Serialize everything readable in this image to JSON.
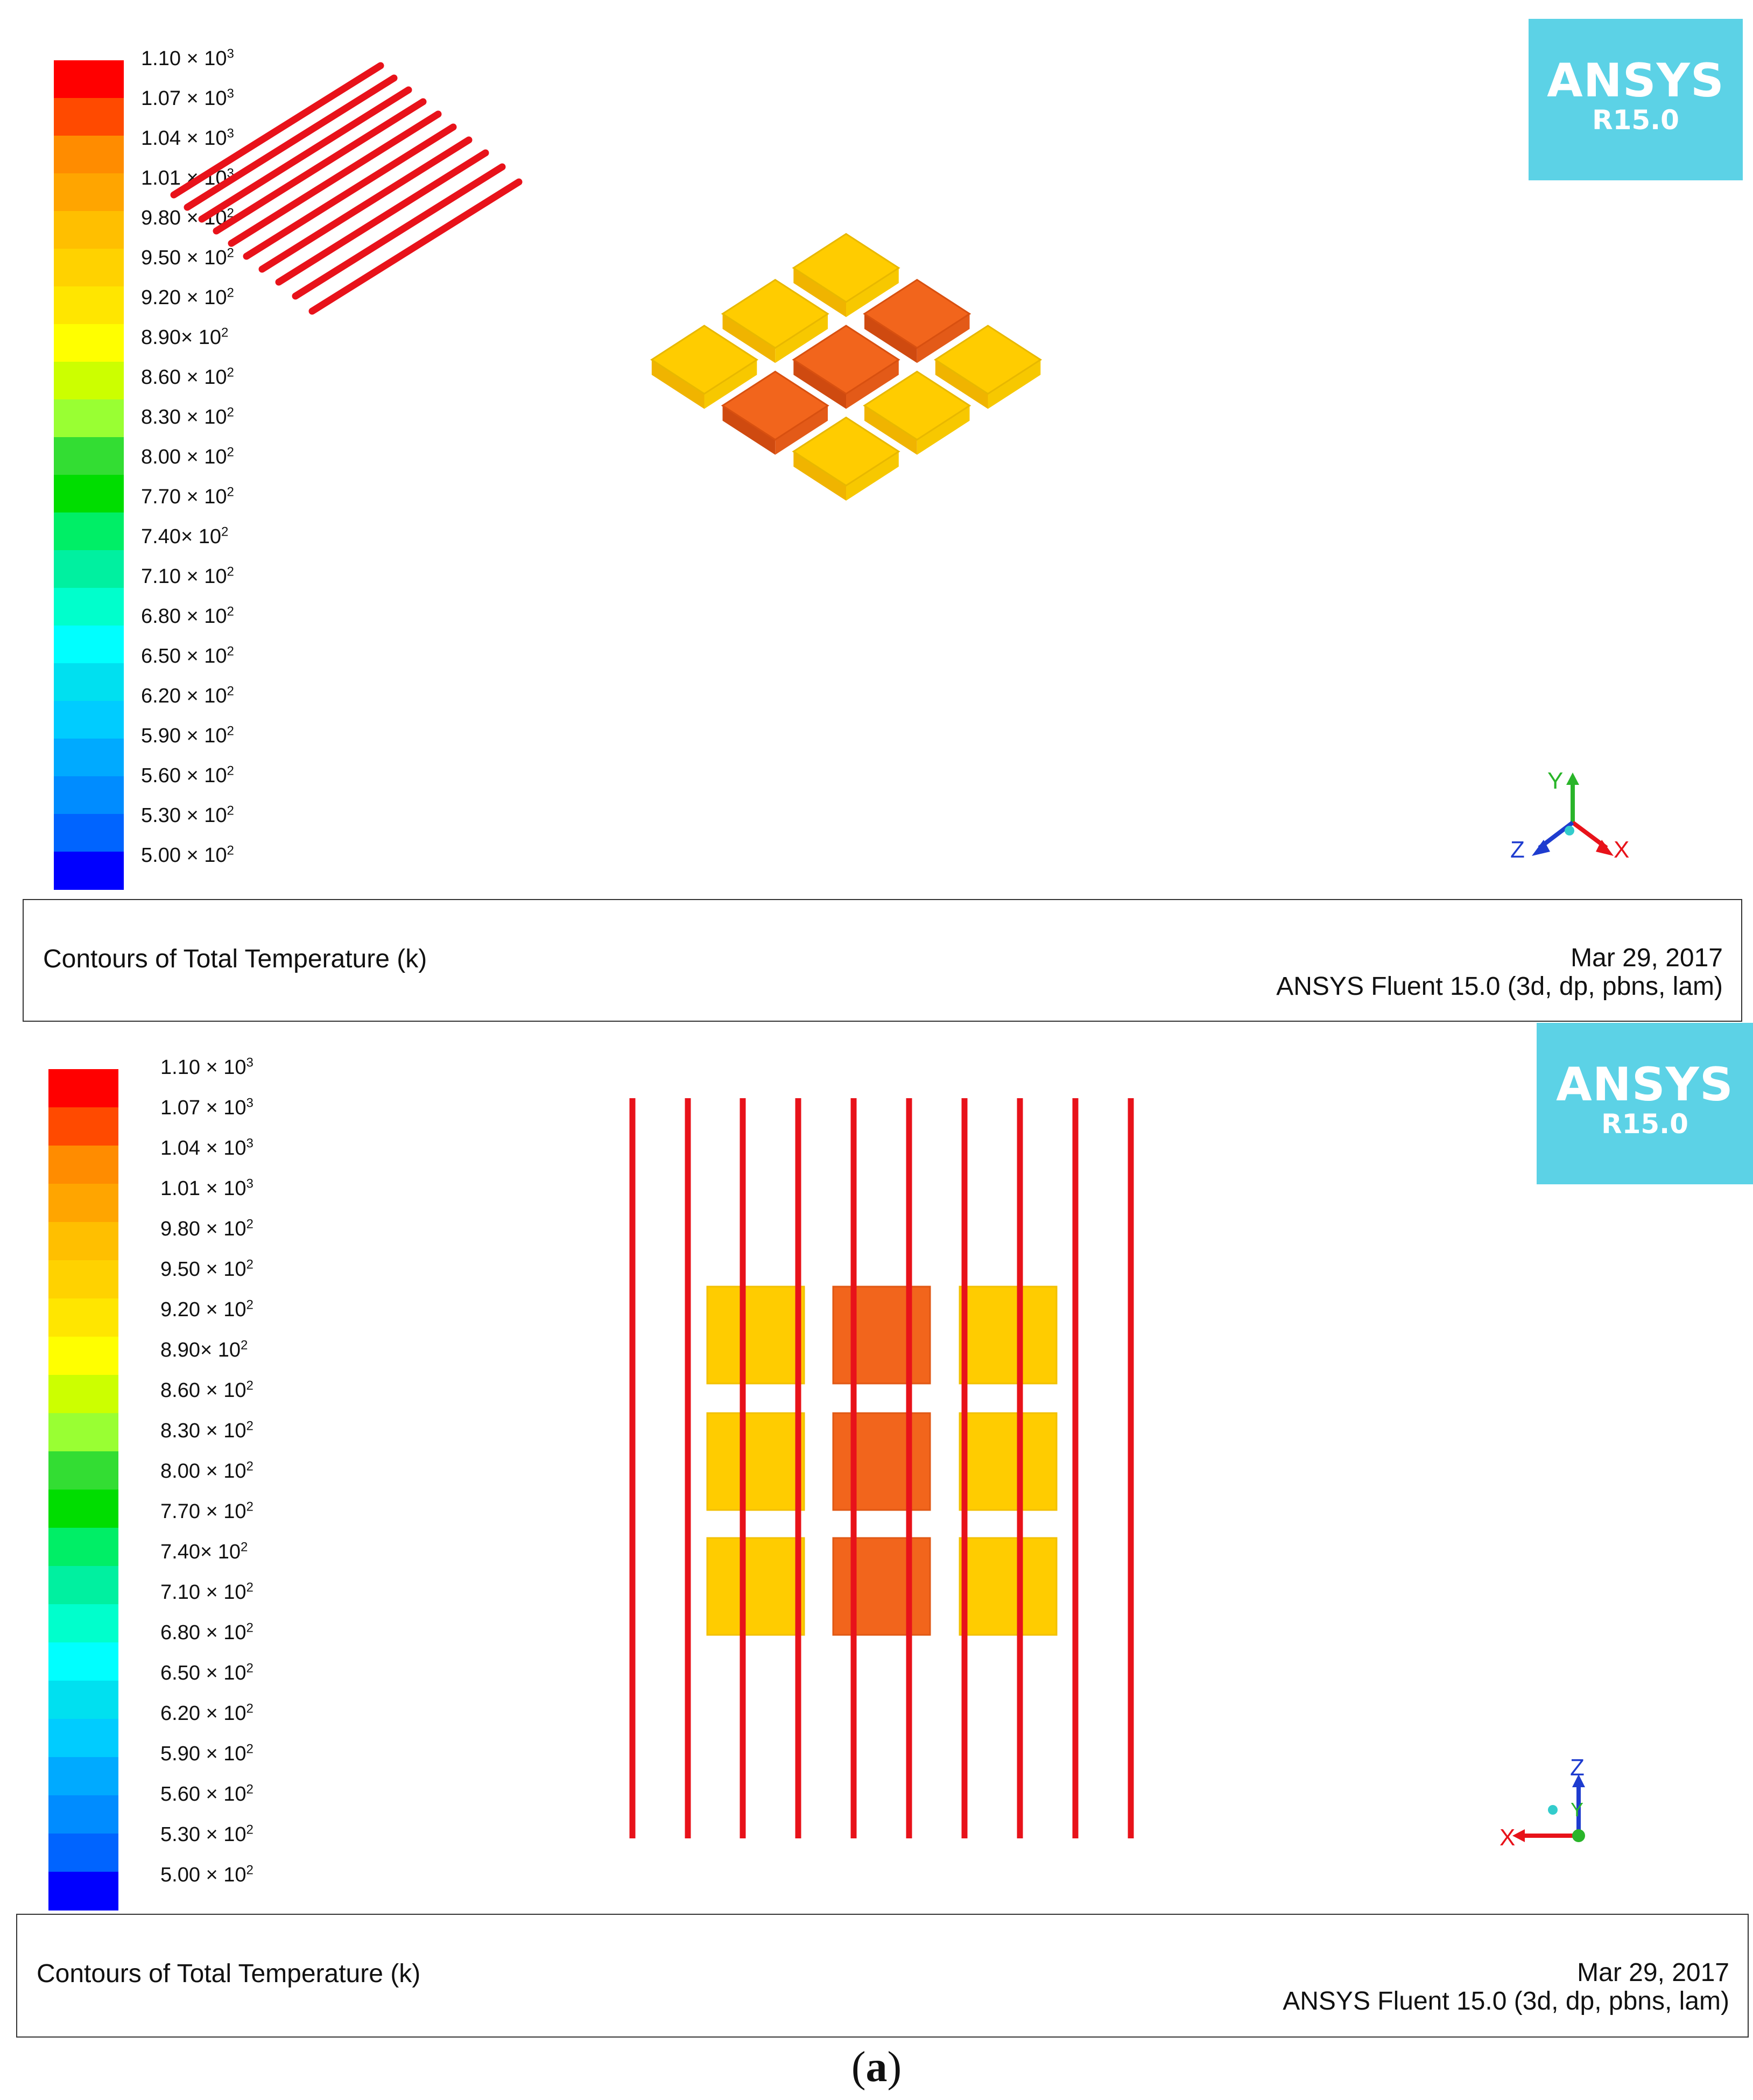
{
  "legend": {
    "colors": [
      "#ff0000",
      "#ff4a00",
      "#ff8c00",
      "#ffa500",
      "#ffbf00",
      "#ffd200",
      "#ffe600",
      "#ffff00",
      "#ccff00",
      "#99ff33",
      "#33dd33",
      "#00dd00",
      "#00ee66",
      "#00f0a0",
      "#00ffcc",
      "#00ffff",
      "#00e0f0",
      "#00ccff",
      "#00aaff",
      "#008cff",
      "#0064ff",
      "#0000ff"
    ],
    "labels": [
      {
        "m": "1.10 × 10",
        "e": "3"
      },
      {
        "m": "1.07 × 10",
        "e": "3"
      },
      {
        "m": "1.04 × 10",
        "e": "3"
      },
      {
        "m": "1.01 × 10",
        "e": "3"
      },
      {
        "m": "9.80 × 10",
        "e": "2"
      },
      {
        "m": "9.50 × 10",
        "e": "2"
      },
      {
        "m": "9.20 × 10",
        "e": "2"
      },
      {
        "m": "8.90× 10",
        "e": "2"
      },
      {
        "m": "8.60 × 10",
        "e": "2"
      },
      {
        "m": "8.30 × 10",
        "e": "2"
      },
      {
        "m": "8.00 × 10",
        "e": "2"
      },
      {
        "m": "7.70 × 10",
        "e": "2"
      },
      {
        "m": "7.40× 10",
        "e": "2"
      },
      {
        "m": "7.10 × 10",
        "e": "2"
      },
      {
        "m": "6.80 × 10",
        "e": "2"
      },
      {
        "m": "6.50 × 10",
        "e": "2"
      },
      {
        "m": "6.20 × 10",
        "e": "2"
      },
      {
        "m": "5.90 × 10",
        "e": "2"
      },
      {
        "m": "5.60 × 10",
        "e": "2"
      },
      {
        "m": "5.30 × 10",
        "e": "2"
      },
      {
        "m": "5.00 × 10",
        "e": "2"
      }
    ]
  },
  "logo": {
    "brand": "ANSYS",
    "revision": "R15.0"
  },
  "panels": [
    {
      "caption": "Contours of Total Temperature (k)",
      "date": "Mar 29, 2017",
      "software": "ANSYS Fluent 15.0 (3d, dp, pbns, lam)"
    },
    {
      "caption": "Contours of Total Temperature (k)",
      "date": "Mar 29, 2017",
      "software": "ANSYS Fluent 15.0 (3d, dp, pbns, lam)"
    }
  ],
  "triad_top": {
    "x": "X",
    "y": "Y",
    "z": "Z"
  },
  "triad_bottom": {
    "x": "X",
    "y": "Y",
    "z": "Z"
  },
  "colors": {
    "rod": "#e8121a",
    "hot_block": "#f2651c",
    "warm_block": "#ffcc00",
    "logo_bg": "#5cd2e6"
  },
  "figure_label": {
    "open": "(",
    "letter": "a",
    "close": ")"
  }
}
